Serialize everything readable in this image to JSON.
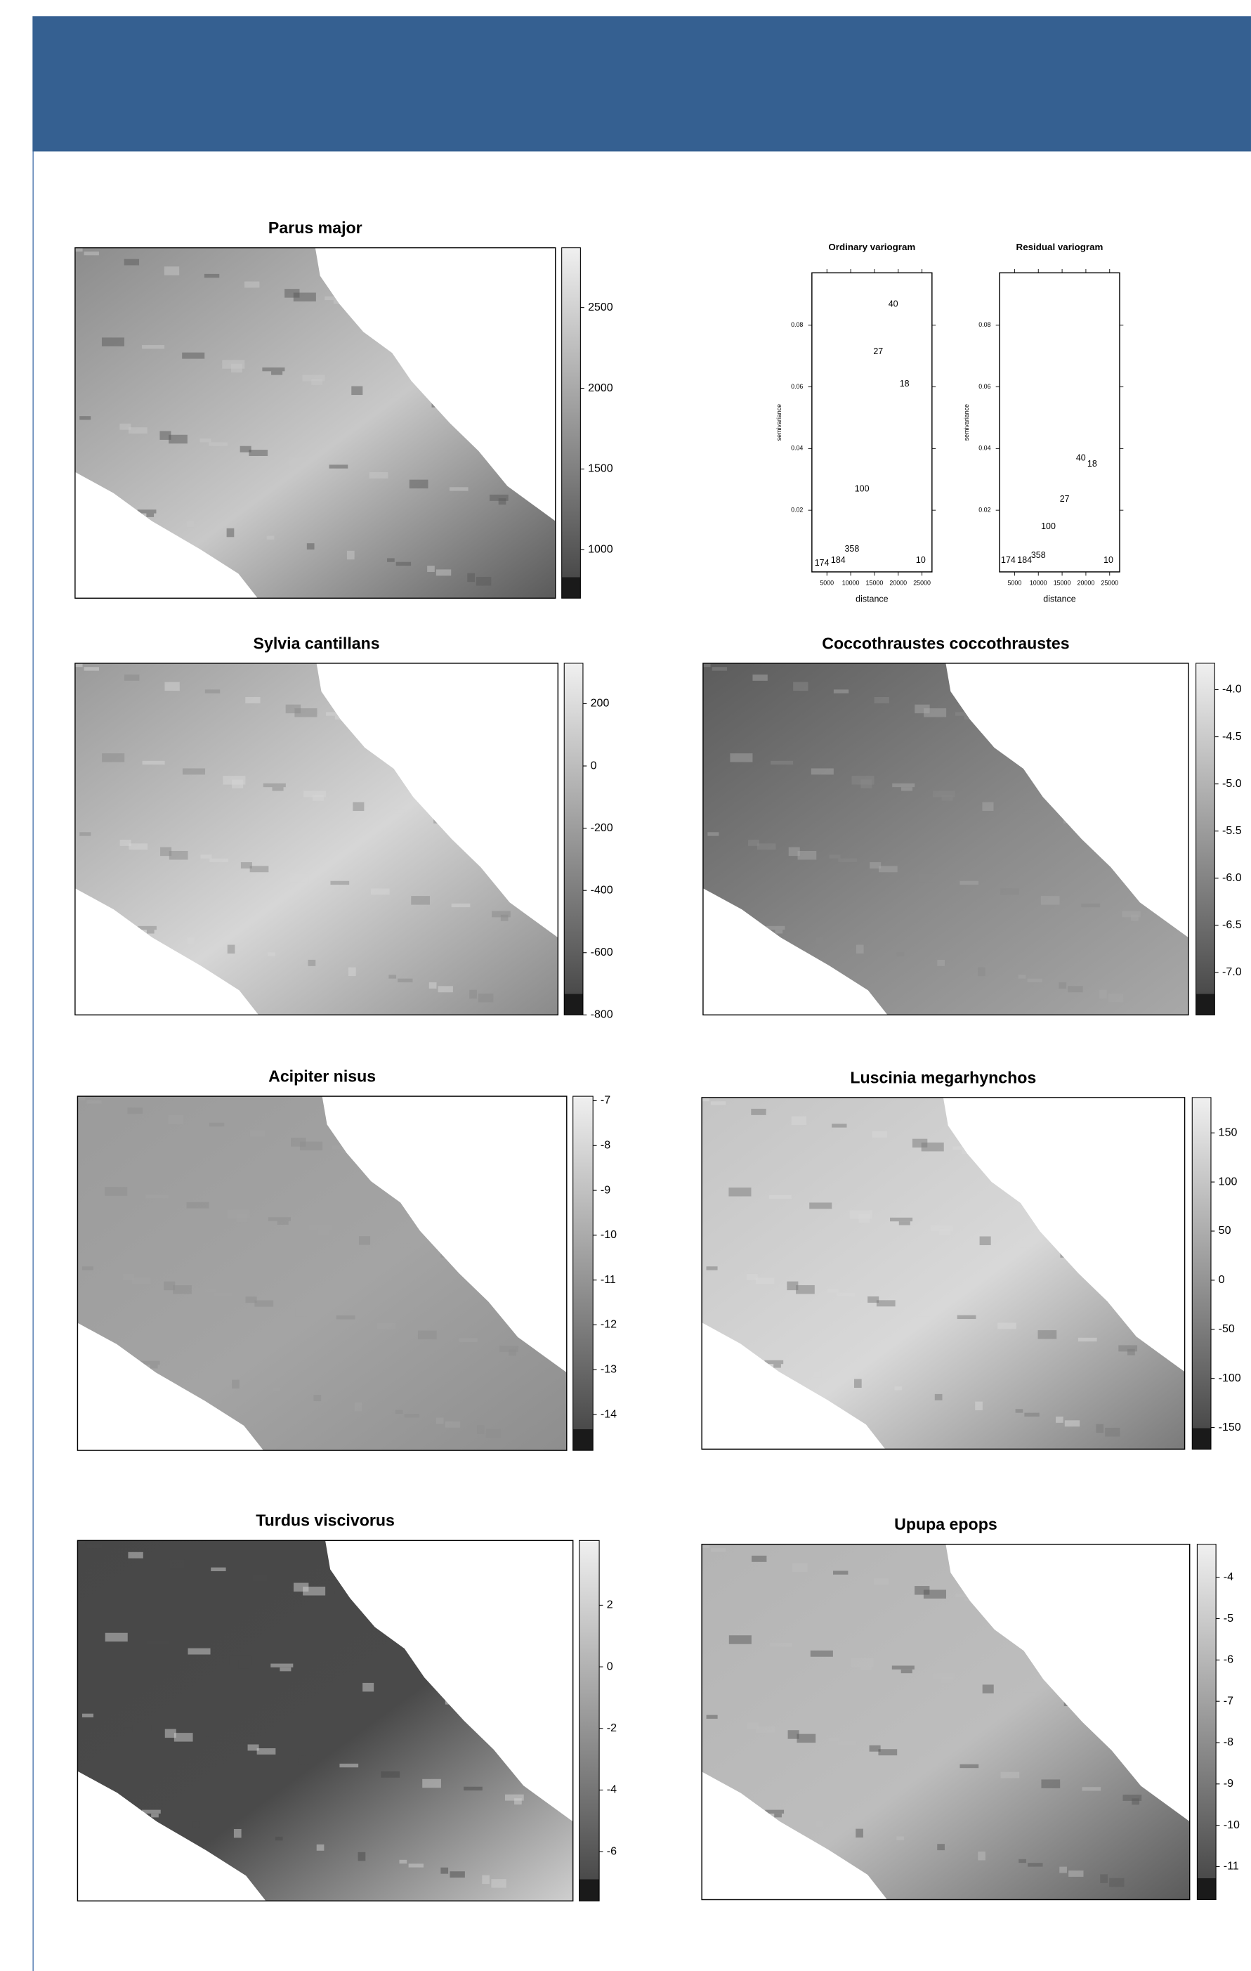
{
  "chart_data": [
    {
      "type": "map",
      "title": "Parus major",
      "clim": [
        700,
        2870
      ],
      "yticks": [
        2500,
        2000,
        1500,
        1000
      ]
    },
    {
      "type": "scatter",
      "title": "Ordinary variogram",
      "xlabel": "distance",
      "ylabel": "semivariance",
      "xlim": [
        1840,
        27100
      ],
      "ylim": [
        0,
        0.097
      ],
      "xticks": [
        5000,
        10000,
        15000,
        20000,
        25000
      ],
      "yticks": [
        0.02,
        0.04,
        0.06,
        0.08
      ],
      "x": [
        3950,
        7370,
        10260,
        12370,
        15790,
        18950,
        21310,
        24740
      ],
      "values": [
        0.0028,
        0.0037,
        0.0073,
        0.0268,
        0.0714,
        0.0868,
        0.0609,
        0.0037
      ],
      "labels": [
        174,
        184,
        358,
        100,
        27,
        40,
        18,
        10
      ]
    },
    {
      "type": "scatter",
      "title": "Residual variogram",
      "xlabel": "distance",
      "ylabel": "semivariance",
      "xlim": [
        1840,
        27100
      ],
      "ylim": [
        0,
        0.097
      ],
      "xticks": [
        5000,
        10000,
        15000,
        20000,
        25000
      ],
      "yticks": [
        0.02,
        0.04,
        0.06,
        0.08
      ],
      "x": [
        3680,
        7110,
        10000,
        12110,
        15530,
        18950,
        21320,
        24740
      ],
      "values": [
        0.0037,
        0.0037,
        0.0053,
        0.0146,
        0.0235,
        0.0369,
        0.0349,
        0.0037
      ],
      "labels": [
        174,
        184,
        358,
        100,
        27,
        40,
        18,
        10
      ]
    },
    {
      "type": "map",
      "title": "Sylvia cantillans",
      "clim": [
        -800,
        330
      ],
      "yticks": [
        200,
        0,
        -200,
        -400,
        -600,
        -800
      ]
    },
    {
      "type": "map",
      "title": "Coccothraustes coccothraustes",
      "clim": [
        -7.45,
        -3.72
      ],
      "yticks": [
        {
          "value": -4,
          "label": "-4.0"
        },
        -4.5,
        {
          "value": -5,
          "label": "-5.0"
        },
        -5.5,
        {
          "value": -6,
          "label": "-6.0"
        },
        -6.5,
        {
          "value": -7,
          "label": "-7.0"
        }
      ]
    },
    {
      "type": "map",
      "title": "Acipiter nisus",
      "clim": [
        -14.8,
        -6.9
      ],
      "yticks": [
        -7,
        -8,
        -9,
        -10,
        -11,
        -12,
        -13,
        -14
      ]
    },
    {
      "type": "map",
      "title": "Luscinia megarhynchos",
      "clim": [
        -172,
        186
      ],
      "yticks": [
        150,
        100,
        50,
        0,
        -50,
        -100,
        -150
      ]
    },
    {
      "type": "map",
      "title": "Turdus viscivorus",
      "clim": [
        -7.6,
        4.1
      ],
      "yticks": [
        2,
        0,
        -2,
        -4,
        -6
      ]
    },
    {
      "type": "map",
      "title": "Upupa epops",
      "clim": [
        -11.8,
        -3.2
      ],
      "yticks": [
        -4,
        -5,
        -6,
        -7,
        -8,
        -9,
        -10,
        -11
      ]
    }
  ]
}
